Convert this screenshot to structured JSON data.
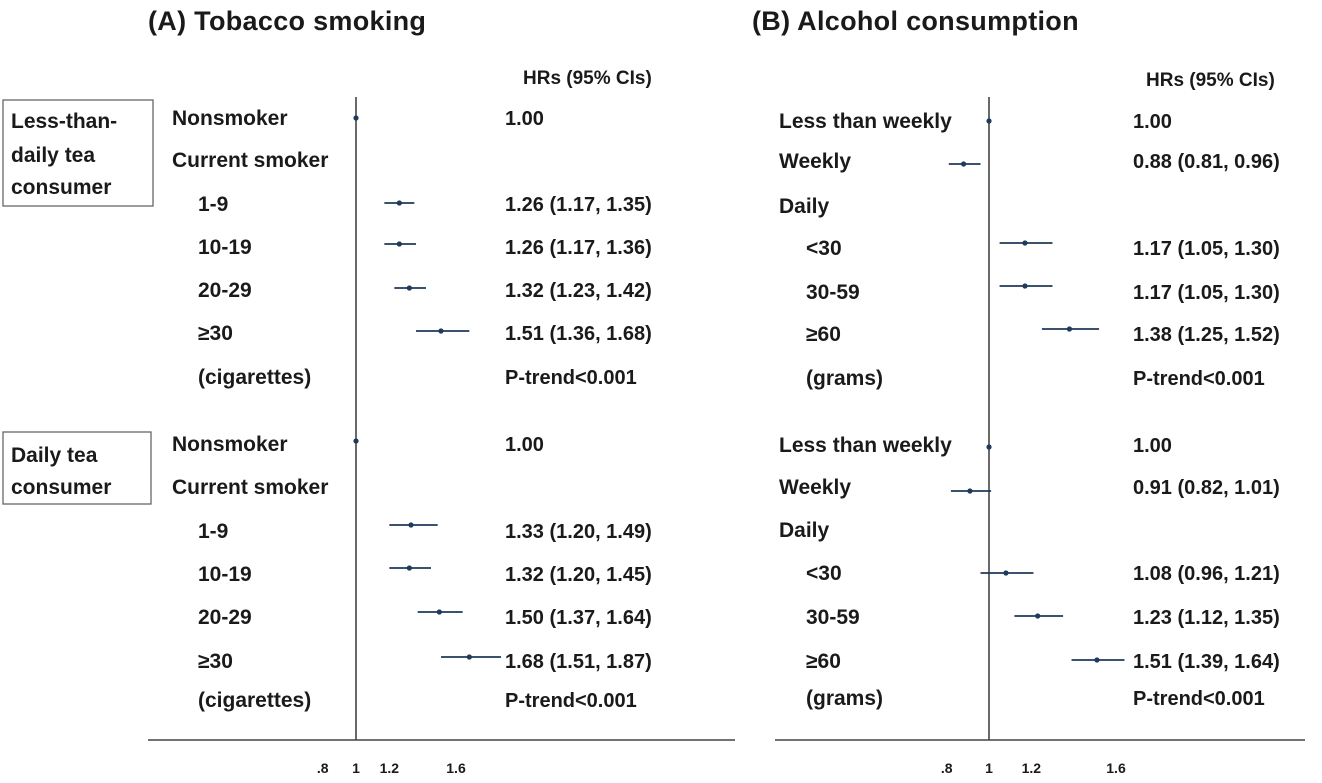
{
  "chart_data": [
    {
      "type": "forest",
      "title": "(A) Tobacco smoking",
      "hr_header": "HRs (95% CIs)",
      "xlabel": "",
      "ylabel": "",
      "x_ticks": [
        ".8",
        "1",
        "1.2",
        "1.6"
      ],
      "x_tick_values": [
        0.8,
        1.0,
        1.2,
        1.6
      ],
      "reference_value": 1.0,
      "groups": [
        {
          "label_lines": [
            "Less-than-",
            "daily tea",
            "consumer"
          ],
          "rows": [
            {
              "label": "Nonsmoker",
              "hr": 1.0,
              "lo": 1.0,
              "hi": 1.0,
              "text": "1.00",
              "indent": false
            },
            {
              "label": "Current smoker",
              "hr": null,
              "lo": null,
              "hi": null,
              "text": "",
              "indent": false
            },
            {
              "label": "1-9",
              "hr": 1.26,
              "lo": 1.17,
              "hi": 1.35,
              "text": "1.26 (1.17, 1.35)",
              "indent": true
            },
            {
              "label": "10-19",
              "hr": 1.26,
              "lo": 1.17,
              "hi": 1.36,
              "text": "1.26 (1.17, 1.36)",
              "indent": true
            },
            {
              "label": "20-29",
              "hr": 1.32,
              "lo": 1.23,
              "hi": 1.42,
              "text": "1.32 (1.23, 1.42)",
              "indent": true
            },
            {
              "label": "≥30",
              "hr": 1.51,
              "lo": 1.36,
              "hi": 1.68,
              "text": "1.51 (1.36, 1.68)",
              "indent": true
            },
            {
              "label": "(cigarettes)",
              "hr": null,
              "lo": null,
              "hi": null,
              "text": "P-trend<0.001",
              "indent": true
            }
          ]
        },
        {
          "label_lines": [
            "Daily tea",
            "consumer"
          ],
          "rows": [
            {
              "label": "Nonsmoker",
              "hr": 1.0,
              "lo": 1.0,
              "hi": 1.0,
              "text": "1.00",
              "indent": false
            },
            {
              "label": "Current smoker",
              "hr": null,
              "lo": null,
              "hi": null,
              "text": "",
              "indent": false
            },
            {
              "label": "1-9",
              "hr": 1.33,
              "lo": 1.2,
              "hi": 1.49,
              "text": "1.33 (1.20, 1.49)",
              "indent": true
            },
            {
              "label": "10-19",
              "hr": 1.32,
              "lo": 1.2,
              "hi": 1.45,
              "text": "1.32 (1.20, 1.45)",
              "indent": true
            },
            {
              "label": "20-29",
              "hr": 1.5,
              "lo": 1.37,
              "hi": 1.64,
              "text": "1.50 (1.37, 1.64)",
              "indent": true
            },
            {
              "label": "≥30",
              "hr": 1.68,
              "lo": 1.51,
              "hi": 1.87,
              "text": "1.68 (1.51, 1.87)",
              "indent": true
            },
            {
              "label": "(cigarettes)",
              "hr": null,
              "lo": null,
              "hi": null,
              "text": "P-trend<0.001",
              "indent": true
            }
          ]
        }
      ]
    },
    {
      "type": "forest",
      "title": "(B) Alcohol consumption",
      "hr_header": "HRs (95% CIs)",
      "xlabel": "",
      "ylabel": "",
      "x_ticks": [
        ".8",
        "1",
        "1.2",
        "1.6"
      ],
      "x_tick_values": [
        0.8,
        1.0,
        1.2,
        1.6
      ],
      "reference_value": 1.0,
      "groups": [
        {
          "label_lines": [],
          "rows": [
            {
              "label": "Less than weekly",
              "hr": 1.0,
              "lo": 1.0,
              "hi": 1.0,
              "text": "1.00",
              "indent": false
            },
            {
              "label": "Weekly",
              "hr": 0.88,
              "lo": 0.81,
              "hi": 0.96,
              "text": "0.88 (0.81, 0.96)",
              "indent": false
            },
            {
              "label": "Daily",
              "hr": null,
              "lo": null,
              "hi": null,
              "text": "",
              "indent": false
            },
            {
              "label": "<30",
              "hr": 1.17,
              "lo": 1.05,
              "hi": 1.3,
              "text": "1.17 (1.05, 1.30)",
              "indent": true
            },
            {
              "label": "30-59",
              "hr": 1.17,
              "lo": 1.05,
              "hi": 1.3,
              "text": "1.17 (1.05, 1.30)",
              "indent": true
            },
            {
              "label": "≥60",
              "hr": 1.38,
              "lo": 1.25,
              "hi": 1.52,
              "text": "1.38 (1.25, 1.52)",
              "indent": true
            },
            {
              "label": "(grams)",
              "hr": null,
              "lo": null,
              "hi": null,
              "text": "P-trend<0.001",
              "indent": true
            }
          ]
        },
        {
          "label_lines": [],
          "rows": [
            {
              "label": "Less than weekly",
              "hr": 1.0,
              "lo": 1.0,
              "hi": 1.0,
              "text": "1.00",
              "indent": false
            },
            {
              "label": "Weekly",
              "hr": 0.91,
              "lo": 0.82,
              "hi": 1.01,
              "text": "0.91 (0.82, 1.01)",
              "indent": false
            },
            {
              "label": "Daily",
              "hr": null,
              "lo": null,
              "hi": null,
              "text": "",
              "indent": false
            },
            {
              "label": "<30",
              "hr": 1.08,
              "lo": 0.96,
              "hi": 1.21,
              "text": "1.08 (0.96, 1.21)",
              "indent": true
            },
            {
              "label": "30-59",
              "hr": 1.23,
              "lo": 1.12,
              "hi": 1.35,
              "text": "1.23 (1.12, 1.35)",
              "indent": true
            },
            {
              "label": "≥60",
              "hr": 1.51,
              "lo": 1.39,
              "hi": 1.64,
              "text": "1.51 (1.39, 1.64)",
              "indent": true
            },
            {
              "label": "(grams)",
              "hr": null,
              "lo": null,
              "hi": null,
              "text": "P-trend<0.001",
              "indent": true
            }
          ]
        }
      ]
    }
  ],
  "colors": {
    "marker": "#1f3a5a",
    "ci_line": "#1f3a5a",
    "axis": "#444444",
    "box_border": "#666666",
    "text": "#1a1a1a"
  }
}
